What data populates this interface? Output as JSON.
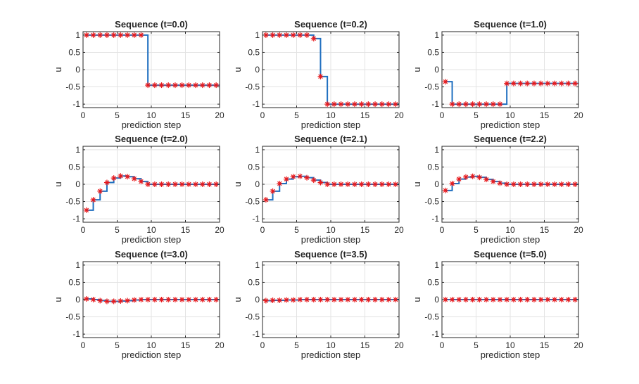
{
  "chart_data": [
    {
      "type": "line",
      "title": "Sequence (t=0.0)",
      "xlabel": "prediction step",
      "ylabel": "u",
      "xlim": [
        0,
        20
      ],
      "ylim": [
        -1.1,
        1.1
      ],
      "xticks": [
        "0",
        "5",
        "10",
        "15",
        "20"
      ],
      "yticks": [
        "1",
        "0.5",
        "0",
        "-0.5",
        "-1"
      ],
      "grid": true,
      "x": [
        0.5,
        1.5,
        2.5,
        3.5,
        4.5,
        5.5,
        6.5,
        7.5,
        8.5,
        9.5,
        10.5,
        11.5,
        12.5,
        13.5,
        14.5,
        15.5,
        16.5,
        17.5,
        18.5,
        19.5
      ],
      "values": [
        1,
        1,
        1,
        1,
        1,
        1,
        1,
        1,
        1,
        -0.45,
        -0.45,
        -0.45,
        -0.45,
        -0.45,
        -0.45,
        -0.45,
        -0.45,
        -0.45,
        -0.45,
        -0.45
      ]
    },
    {
      "type": "line",
      "title": "Sequence (t=0.2)",
      "xlabel": "prediction step",
      "ylabel": "u",
      "xlim": [
        0,
        20
      ],
      "ylim": [
        -1.1,
        1.1
      ],
      "xticks": [
        "0",
        "5",
        "10",
        "15",
        "20"
      ],
      "yticks": [
        "1",
        "0.5",
        "0",
        "-0.5",
        "-1"
      ],
      "grid": true,
      "x": [
        0.5,
        1.5,
        2.5,
        3.5,
        4.5,
        5.5,
        6.5,
        7.5,
        8.5,
        9.5,
        10.5,
        11.5,
        12.5,
        13.5,
        14.5,
        15.5,
        16.5,
        17.5,
        18.5,
        19.5
      ],
      "values": [
        1,
        1,
        1,
        1,
        1,
        1,
        1,
        0.9,
        -0.2,
        -1,
        -1,
        -1,
        -1,
        -1,
        -1,
        -1,
        -1,
        -1,
        -1,
        -1
      ]
    },
    {
      "type": "line",
      "title": "Sequence (t=1.0)",
      "xlabel": "prediction step",
      "ylabel": "u",
      "xlim": [
        0,
        20
      ],
      "ylim": [
        -1.1,
        1.1
      ],
      "xticks": [
        "0",
        "5",
        "10",
        "15",
        "20"
      ],
      "yticks": [
        "1",
        "0.5",
        "0",
        "-0.5",
        "-1"
      ],
      "grid": true,
      "x": [
        0.5,
        1.5,
        2.5,
        3.5,
        4.5,
        5.5,
        6.5,
        7.5,
        8.5,
        9.5,
        10.5,
        11.5,
        12.5,
        13.5,
        14.5,
        15.5,
        16.5,
        17.5,
        18.5,
        19.5
      ],
      "values": [
        -0.35,
        -1,
        -1,
        -1,
        -1,
        -1,
        -1,
        -1,
        -1,
        -0.4,
        -0.4,
        -0.4,
        -0.4,
        -0.4,
        -0.4,
        -0.4,
        -0.4,
        -0.4,
        -0.4,
        -0.4
      ]
    },
    {
      "type": "line",
      "title": "Sequence (t=2.0)",
      "xlabel": "prediction step",
      "ylabel": "u",
      "xlim": [
        0,
        20
      ],
      "ylim": [
        -1.1,
        1.1
      ],
      "xticks": [
        "0",
        "5",
        "10",
        "15",
        "20"
      ],
      "yticks": [
        "1",
        "0.5",
        "0",
        "-0.5",
        "-1"
      ],
      "grid": true,
      "x": [
        0.5,
        1.5,
        2.5,
        3.5,
        4.5,
        5.5,
        6.5,
        7.5,
        8.5,
        9.5,
        10.5,
        11.5,
        12.5,
        13.5,
        14.5,
        15.5,
        16.5,
        17.5,
        18.5,
        19.5
      ],
      "values": [
        -0.75,
        -0.45,
        -0.2,
        0.05,
        0.18,
        0.24,
        0.22,
        0.16,
        0.08,
        0,
        0,
        0,
        0,
        0,
        0,
        0,
        0,
        0,
        0,
        0
      ]
    },
    {
      "type": "line",
      "title": "Sequence (t=2.1)",
      "xlabel": "prediction step",
      "ylabel": "u",
      "xlim": [
        0,
        20
      ],
      "ylim": [
        -1.1,
        1.1
      ],
      "xticks": [
        "0",
        "5",
        "10",
        "15",
        "20"
      ],
      "yticks": [
        "1",
        "0.5",
        "0",
        "-0.5",
        "-1"
      ],
      "grid": true,
      "x": [
        0.5,
        1.5,
        2.5,
        3.5,
        4.5,
        5.5,
        6.5,
        7.5,
        8.5,
        9.5,
        10.5,
        11.5,
        12.5,
        13.5,
        14.5,
        15.5,
        16.5,
        17.5,
        18.5,
        19.5
      ],
      "values": [
        -0.45,
        -0.2,
        0.02,
        0.15,
        0.22,
        0.23,
        0.19,
        0.12,
        0.05,
        0,
        0,
        0,
        0,
        0,
        0,
        0,
        0,
        0,
        0,
        0
      ]
    },
    {
      "type": "line",
      "title": "Sequence (t=2.2)",
      "xlabel": "prediction step",
      "ylabel": "u",
      "xlim": [
        0,
        20
      ],
      "ylim": [
        -1.1,
        1.1
      ],
      "xticks": [
        "0",
        "5",
        "10",
        "15",
        "20"
      ],
      "yticks": [
        "1",
        "0.5",
        "0",
        "-0.5",
        "-1"
      ],
      "grid": true,
      "x": [
        0.5,
        1.5,
        2.5,
        3.5,
        4.5,
        5.5,
        6.5,
        7.5,
        8.5,
        9.5,
        10.5,
        11.5,
        12.5,
        13.5,
        14.5,
        15.5,
        16.5,
        17.5,
        18.5,
        19.5
      ],
      "values": [
        -0.18,
        0.02,
        0.15,
        0.21,
        0.23,
        0.2,
        0.14,
        0.08,
        0.03,
        0,
        0,
        0,
        0,
        0,
        0,
        0,
        0,
        0,
        0,
        0
      ]
    },
    {
      "type": "line",
      "title": "Sequence (t=3.0)",
      "xlabel": "prediction step",
      "ylabel": "u",
      "xlim": [
        0,
        20
      ],
      "ylim": [
        -1.1,
        1.1
      ],
      "xticks": [
        "0",
        "5",
        "10",
        "15",
        "20"
      ],
      "yticks": [
        "1",
        "0.5",
        "0",
        "-0.5",
        "-1"
      ],
      "grid": true,
      "x": [
        0.5,
        1.5,
        2.5,
        3.5,
        4.5,
        5.5,
        6.5,
        7.5,
        8.5,
        9.5,
        10.5,
        11.5,
        12.5,
        13.5,
        14.5,
        15.5,
        16.5,
        17.5,
        18.5,
        19.5
      ],
      "values": [
        0.02,
        0,
        -0.03,
        -0.05,
        -0.05,
        -0.04,
        -0.03,
        -0.01,
        0,
        0,
        0,
        0,
        0,
        0,
        0,
        0,
        0,
        0,
        0,
        0
      ]
    },
    {
      "type": "line",
      "title": "Sequence (t=3.5)",
      "xlabel": "prediction step",
      "ylabel": "u",
      "xlim": [
        0,
        20
      ],
      "ylim": [
        -1.1,
        1.1
      ],
      "xticks": [
        "0",
        "5",
        "10",
        "15",
        "20"
      ],
      "yticks": [
        "1",
        "0.5",
        "0",
        "-0.5",
        "-1"
      ],
      "grid": true,
      "x": [
        0.5,
        1.5,
        2.5,
        3.5,
        4.5,
        5.5,
        6.5,
        7.5,
        8.5,
        9.5,
        10.5,
        11.5,
        12.5,
        13.5,
        14.5,
        15.5,
        16.5,
        17.5,
        18.5,
        19.5
      ],
      "values": [
        -0.03,
        -0.02,
        -0.02,
        -0.01,
        -0.01,
        0,
        0,
        0,
        0,
        0,
        0,
        0,
        0,
        0,
        0,
        0,
        0,
        0,
        0,
        0
      ]
    },
    {
      "type": "line",
      "title": "Sequence (t=5.0)",
      "xlabel": "prediction step",
      "ylabel": "u",
      "xlim": [
        0,
        20
      ],
      "ylim": [
        -1.1,
        1.1
      ],
      "xticks": [
        "0",
        "5",
        "10",
        "15",
        "20"
      ],
      "yticks": [
        "1",
        "0.5",
        "0",
        "-0.5",
        "-1"
      ],
      "grid": true,
      "x": [
        0.5,
        1.5,
        2.5,
        3.5,
        4.5,
        5.5,
        6.5,
        7.5,
        8.5,
        9.5,
        10.5,
        11.5,
        12.5,
        13.5,
        14.5,
        15.5,
        16.5,
        17.5,
        18.5,
        19.5
      ],
      "values": [
        0,
        0,
        0,
        0,
        0,
        0,
        0,
        0,
        0,
        0,
        0,
        0,
        0,
        0,
        0,
        0,
        0,
        0,
        0,
        0
      ]
    }
  ],
  "colors": {
    "line": "#1f6fc0",
    "marker": "#e8191c",
    "grid": "#e3e3e3",
    "axis": "#262626",
    "text": "#262626"
  }
}
